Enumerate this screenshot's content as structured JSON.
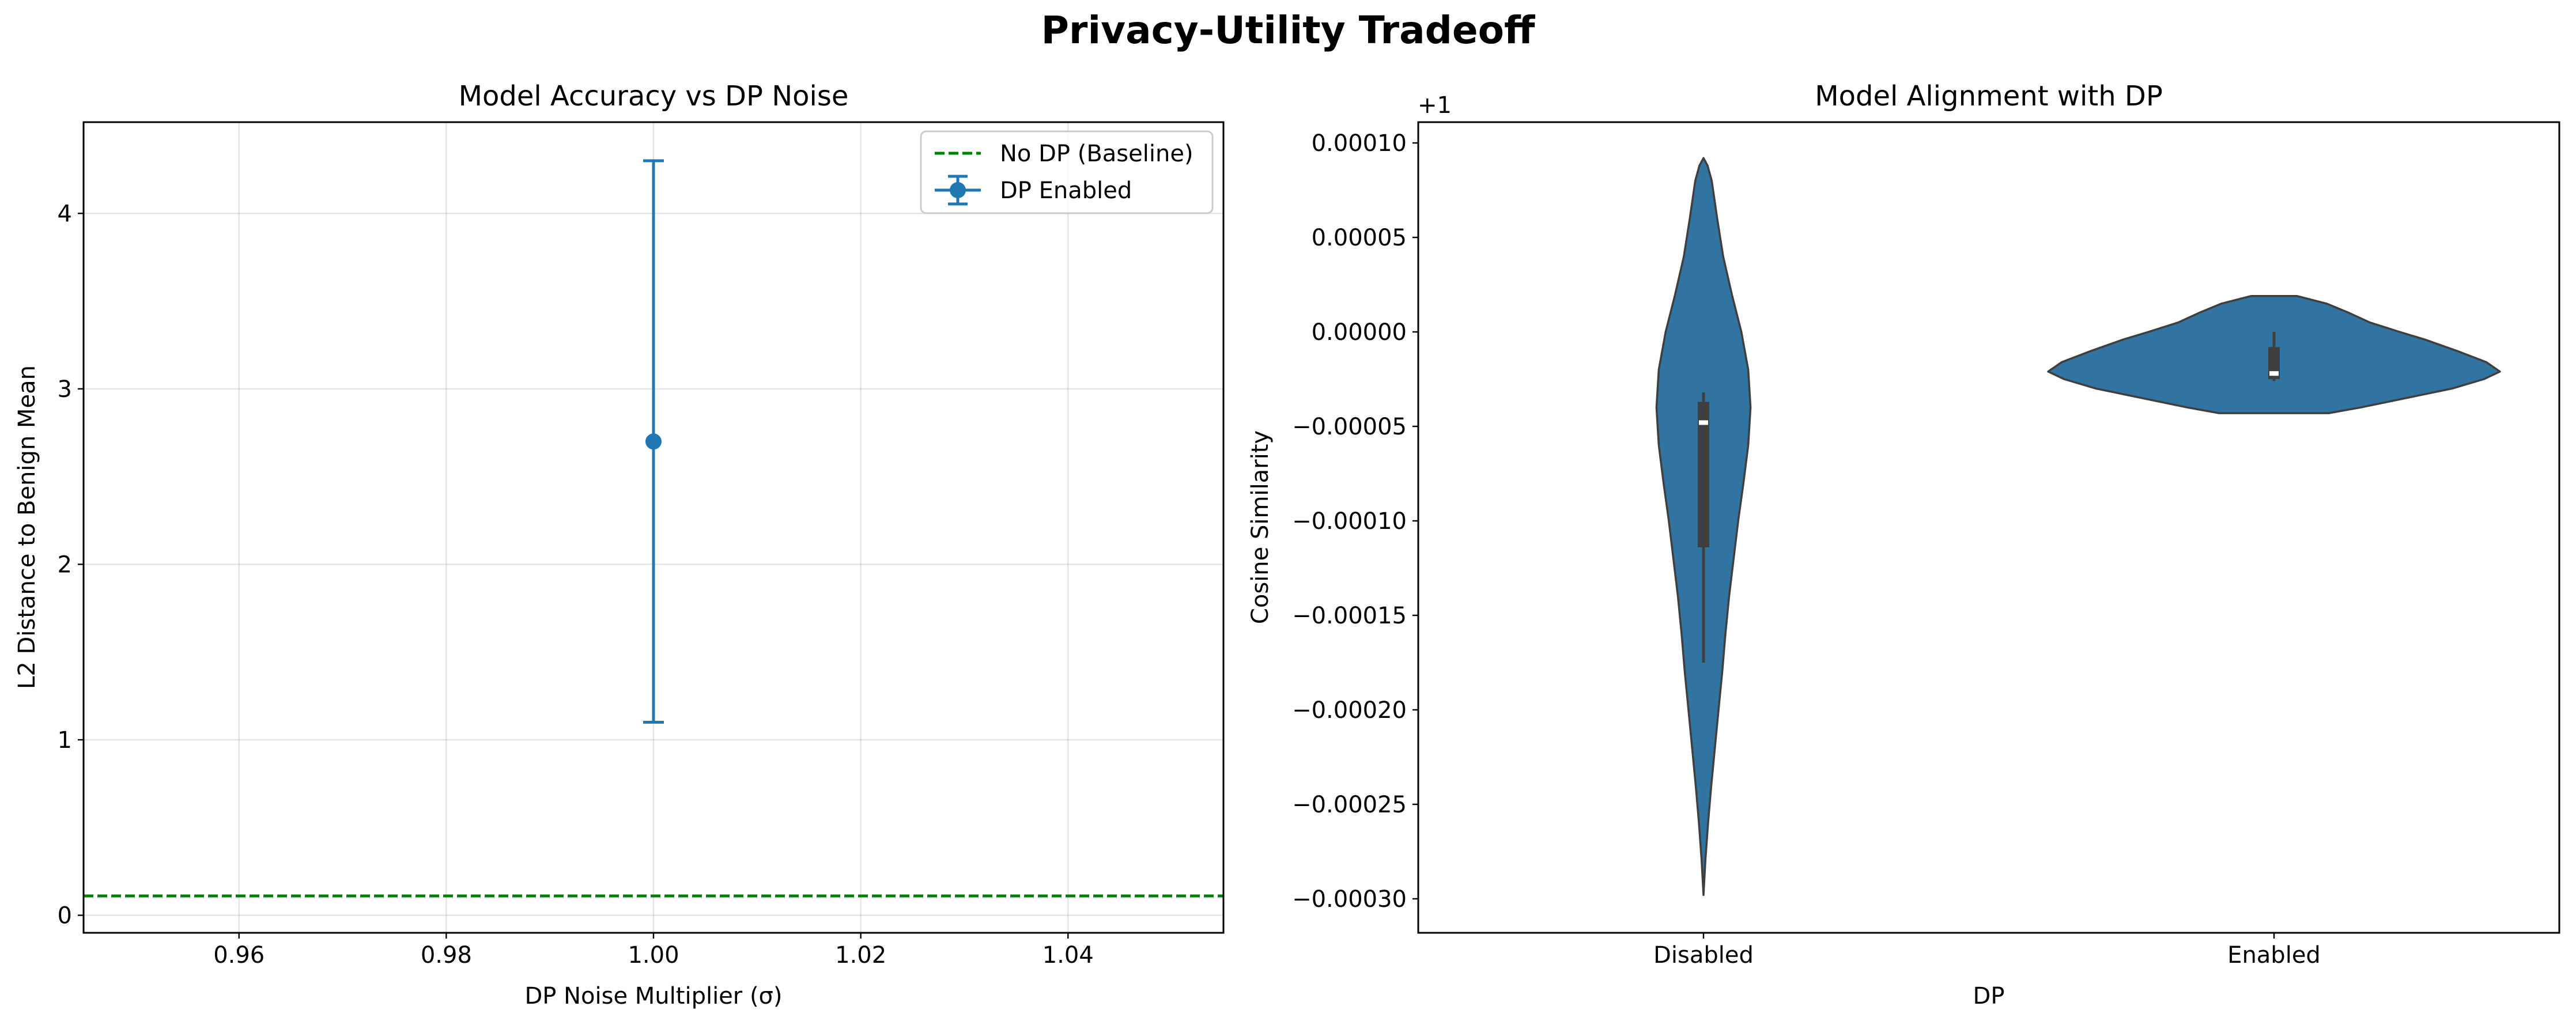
{
  "figure": {
    "suptitle": "Privacy-Utility Tradeoff"
  },
  "chart_data": [
    {
      "type": "errorbar",
      "title": "Model Accuracy vs DP Noise",
      "xlabel": "DP Noise Multiplier (σ)",
      "ylabel": "L2 Distance to Benign Mean",
      "xlim": [
        0.945,
        1.055
      ],
      "ylim": [
        -0.1,
        4.52
      ],
      "xticks": [
        0.96,
        0.98,
        1.0,
        1.02,
        1.04
      ],
      "xtick_labels": [
        "0.96",
        "0.98",
        "1.00",
        "1.02",
        "1.04"
      ],
      "yticks": [
        0,
        1,
        2,
        3,
        4
      ],
      "ytick_labels": [
        "0",
        "1",
        "2",
        "3",
        "4"
      ],
      "grid": true,
      "legend_position": "top-right",
      "series": [
        {
          "name": "DP Enabled",
          "x": [
            1.0
          ],
          "y": [
            2.7
          ],
          "yerr": [
            1.6
          ],
          "color": "#1f77b4"
        }
      ],
      "reference_lines": [
        {
          "name": "No DP (Baseline)",
          "y": 0.11,
          "style": "dashed",
          "color": "#008000"
        }
      ]
    },
    {
      "type": "violin",
      "title": "Model Alignment with DP",
      "xlabel": "DP",
      "ylabel": "Cosine Similarity",
      "offset_label": "+1",
      "categories": [
        "Disabled",
        "Enabled"
      ],
      "ylim": [
        -0.000318,
        0.000111
      ],
      "yticks": [
        0.0001,
        5e-05,
        0.0,
        -5e-05,
        -0.0001,
        -0.00015,
        -0.0002,
        -0.00025,
        -0.0003
      ],
      "ytick_labels": [
        "0.00010",
        "0.00005",
        "0.00000",
        "−0.00005",
        "−0.00010",
        "−0.00015",
        "−0.00020",
        "−0.00025",
        "−0.00030"
      ],
      "grid": false,
      "color": "#3274a1",
      "violins": [
        {
          "category": "Disabled",
          "min": -0.000298,
          "max": 9.2e-05,
          "whisker_low": -0.000175,
          "whisker_high": -3.2e-05,
          "q1": -0.000114,
          "median": -4.8e-05,
          "q3": -3.7e-05,
          "profile": [
            [
              -0.000298,
              0.0
            ],
            [
              -0.00028,
              0.008
            ],
            [
              -0.00026,
              0.02
            ],
            [
              -0.00024,
              0.034
            ],
            [
              -0.00022,
              0.05
            ],
            [
              -0.0002,
              0.066
            ],
            [
              -0.00018,
              0.082
            ],
            [
              -0.00016,
              0.096
            ],
            [
              -0.00014,
              0.112
            ],
            [
              -0.00012,
              0.132
            ],
            [
              -0.0001,
              0.152
            ],
            [
              -8e-05,
              0.175
            ],
            [
              -6e-05,
              0.196
            ],
            [
              -4e-05,
              0.206
            ],
            [
              -2e-05,
              0.196
            ],
            [
              0.0,
              0.166
            ],
            [
              2e-05,
              0.124
            ],
            [
              4e-05,
              0.086
            ],
            [
              6e-05,
              0.06
            ],
            [
              8e-05,
              0.036
            ],
            [
              8.8e-05,
              0.018
            ],
            [
              9.2e-05,
              0.0
            ]
          ]
        },
        {
          "category": "Enabled",
          "min": -4.3e-05,
          "max": 1.9e-05,
          "whisker_low": -2.6e-05,
          "whisker_high": 0.0,
          "q1": -2.5e-05,
          "median": -2.2e-05,
          "q3": -8e-06,
          "profile": [
            [
              -4.3e-05,
              0.24
            ],
            [
              -4e-05,
              0.38
            ],
            [
              -3.5e-05,
              0.58
            ],
            [
              -3e-05,
              0.78
            ],
            [
              -2.5e-05,
              0.92
            ],
            [
              -2.1e-05,
              0.99
            ],
            [
              -1.6e-05,
              0.93
            ],
            [
              -1e-05,
              0.8
            ],
            [
              -4e-06,
              0.66
            ],
            [
              0.0,
              0.55
            ],
            [
              5e-06,
              0.42
            ],
            [
              1e-05,
              0.33
            ],
            [
              1.5e-05,
              0.23
            ],
            [
              1.9e-05,
              0.1
            ]
          ]
        }
      ]
    }
  ]
}
